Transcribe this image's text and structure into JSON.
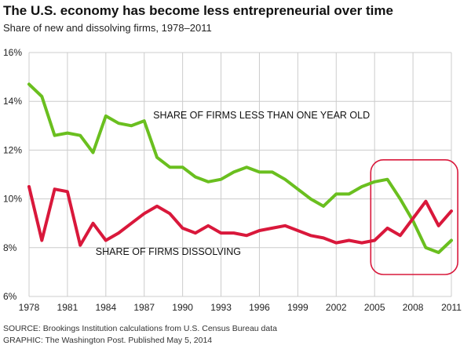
{
  "title": "The U.S. economy has become less entrepreneurial over time",
  "subtitle": "Share of new and dissolving firms, 1978–2011",
  "source": "SOURCE: Brookings Institution calculations from U.S. Census Bureau data",
  "graphic": "GRAPHIC: The Washington Post. Published May 5, 2014",
  "colors": {
    "new_firms": "#6abf1f",
    "dissolving": "#d9183b",
    "highlight": "#d9183b",
    "grid": "#cccccc"
  },
  "chart_data": {
    "type": "line",
    "title": "The U.S. economy has become less entrepreneurial over time",
    "subtitle": "Share of new and dissolving firms, 1978–2011",
    "xlabel": "",
    "ylabel": "",
    "xlim": [
      1978,
      2011
    ],
    "ylim": [
      6,
      16
    ],
    "x_ticks": [
      1978,
      1981,
      1984,
      1987,
      1990,
      1993,
      1996,
      1999,
      2002,
      2005,
      2008,
      2011
    ],
    "y_ticks": [
      6,
      8,
      10,
      12,
      14,
      16
    ],
    "y_tick_labels": [
      "6%",
      "8%",
      "10%",
      "12%",
      "14%",
      "16%"
    ],
    "grid": true,
    "x": [
      1978,
      1979,
      1980,
      1981,
      1982,
      1983,
      1984,
      1985,
      1986,
      1987,
      1988,
      1989,
      1990,
      1991,
      1992,
      1993,
      1994,
      1995,
      1996,
      1997,
      1998,
      1999,
      2000,
      2001,
      2002,
      2003,
      2004,
      2005,
      2006,
      2007,
      2008,
      2009,
      2010,
      2011
    ],
    "series": [
      {
        "name": "SHARE OF FIRMS LESS THAN ONE YEAR OLD",
        "color_key": "new_firms",
        "values": [
          14.7,
          14.2,
          12.6,
          12.7,
          12.6,
          11.9,
          13.4,
          13.1,
          13.0,
          13.2,
          11.7,
          11.3,
          11.3,
          10.9,
          10.7,
          10.8,
          11.1,
          11.3,
          11.1,
          11.1,
          10.8,
          10.4,
          10.0,
          9.7,
          10.2,
          10.2,
          10.5,
          10.7,
          10.8,
          10.0,
          9.1,
          8.0,
          7.8,
          8.3
        ]
      },
      {
        "name": "SHARE OF FIRMS DISSOLVING",
        "color_key": "dissolving",
        "values": [
          10.5,
          8.3,
          10.4,
          10.3,
          8.1,
          9.0,
          8.3,
          8.6,
          9.0,
          9.4,
          9.7,
          9.4,
          8.8,
          8.6,
          8.9,
          8.6,
          8.6,
          8.5,
          8.7,
          8.8,
          8.9,
          8.7,
          8.5,
          8.4,
          8.2,
          8.3,
          8.2,
          8.3,
          8.8,
          8.5,
          9.2,
          9.9,
          8.9,
          9.5
        ]
      }
    ],
    "annotations": [
      {
        "text": "SHARE OF FIRMS LESS THAN ONE YEAR OLD",
        "x": 1987.7,
        "y": 13.3
      },
      {
        "text": "SHARE OF FIRMS DISSOLVING",
        "x": 1983.2,
        "y": 7.7
      }
    ],
    "highlight_region": {
      "x0": 2004.7,
      "x1": 2011.5,
      "y0": 6.9,
      "y1": 11.6
    }
  }
}
